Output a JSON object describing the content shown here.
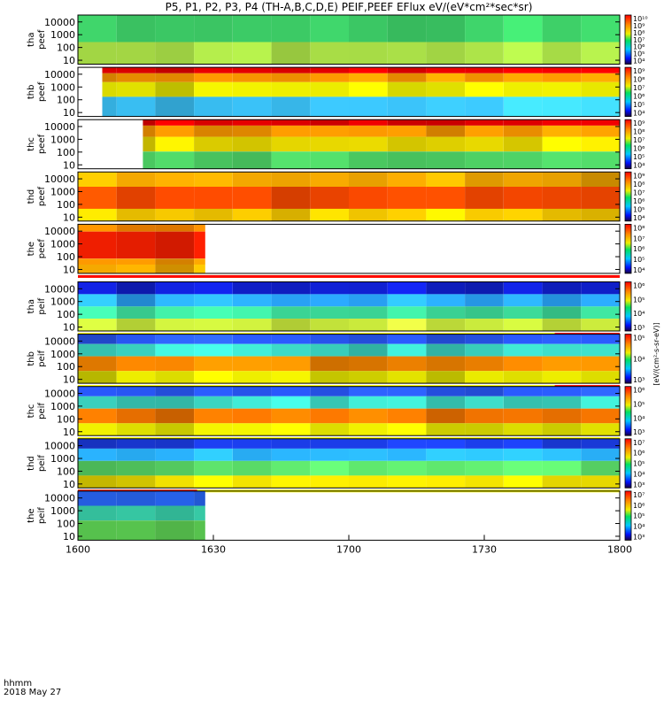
{
  "chart_data": {
    "type": "heatmap",
    "title": "P5, P1, P2, P3, P4 (TH-A,B,C,D,E) PEIF,PEEF EFlux eV/(eV*cm²*sec*sr)",
    "colorbar_label": "[eV/(cm²-s-sr-eV)]",
    "time_axis": {
      "ticks": [
        "1600",
        "1630",
        "1700",
        "1730",
        "1800"
      ],
      "label_line1": "hhmm",
      "label_line2": "2018 May 27"
    },
    "energy_ticks": [
      "10",
      "100",
      "1000",
      "10000"
    ],
    "panels": [
      {
        "probe": "tha",
        "product": "peef",
        "label_top": "tha",
        "label_bottom": "peef",
        "cbar_ticks": [
          "10⁴",
          "10⁵",
          "10⁶",
          "10⁷",
          "10⁸",
          "10⁹",
          "10¹⁰"
        ],
        "coverage": [
          0,
          1
        ],
        "bands": [
          {
            "from": 0.0,
            "to": 0.55,
            "color": "#3fd46a"
          },
          {
            "from": 0.55,
            "to": 1.0,
            "color": "#b0e84a"
          }
        ],
        "status_bar": ""
      },
      {
        "probe": "thb",
        "product": "peef",
        "label_top": "thb",
        "label_bottom": "peef",
        "cbar_ticks": [
          "10⁴",
          "10⁵",
          "10⁶",
          "10⁷",
          "10⁸",
          "10⁹"
        ],
        "coverage": [
          0.045,
          1
        ],
        "bands": [
          {
            "from": 0.0,
            "to": 0.12,
            "color": "#e80000"
          },
          {
            "from": 0.12,
            "to": 0.3,
            "color": "#ff9a00"
          },
          {
            "from": 0.3,
            "to": 0.6,
            "color": "#e8e800"
          },
          {
            "from": 0.6,
            "to": 1.0,
            "color": "#3cc8ff"
          }
        ],
        "status_bar": ""
      },
      {
        "probe": "thc",
        "product": "peef",
        "label_top": "thc",
        "label_bottom": "peef",
        "cbar_ticks": [
          "10⁴",
          "10⁵",
          "10⁶",
          "10⁷",
          "10⁸",
          "10⁹"
        ],
        "coverage": [
          0.12,
          1
        ],
        "bands": [
          {
            "from": 0.0,
            "to": 0.12,
            "color": "#e80000"
          },
          {
            "from": 0.12,
            "to": 0.35,
            "color": "#ff9a00"
          },
          {
            "from": 0.35,
            "to": 0.65,
            "color": "#f0e000"
          },
          {
            "from": 0.65,
            "to": 1.0,
            "color": "#52dc6a"
          }
        ],
        "status_bar": ""
      },
      {
        "probe": "thd",
        "product": "peef",
        "label_top": "thd",
        "label_bottom": "peef",
        "cbar_ticks": [
          "10⁴",
          "10⁵",
          "10⁶",
          "10⁷",
          "10⁸",
          "10⁹"
        ],
        "coverage": [
          0,
          1
        ],
        "bands": [
          {
            "from": 0.0,
            "to": 0.3,
            "color": "#ffb000"
          },
          {
            "from": 0.3,
            "to": 0.75,
            "color": "#ff4a00"
          },
          {
            "from": 0.75,
            "to": 1.0,
            "color": "#ffd000"
          }
        ],
        "status_bar": ""
      },
      {
        "probe": "the",
        "product": "peef",
        "label_top": "the",
        "label_bottom": "peef",
        "cbar_ticks": [
          "10⁴",
          "10⁵",
          "10⁶",
          "10⁷",
          "10⁸"
        ],
        "coverage": [
          0,
          0.235
        ],
        "bands": [
          {
            "from": 0.0,
            "to": 0.15,
            "color": "#ff8a00"
          },
          {
            "from": 0.15,
            "to": 0.7,
            "color": "#ff2000"
          },
          {
            "from": 0.7,
            "to": 0.82,
            "color": "#ff9a00"
          },
          {
            "from": 0.82,
            "to": 1.0,
            "color": "#ffb000"
          }
        ],
        "status_bar": "red"
      },
      {
        "probe": "tha",
        "product": "peif",
        "label_top": "tha",
        "label_bottom": "peif",
        "cbar_ticks": [
          "10³",
          "10⁴",
          "10⁵",
          "10⁶"
        ],
        "coverage": [
          0,
          1
        ],
        "bands": [
          {
            "from": 0.0,
            "to": 0.25,
            "color": "#1020d0"
          },
          {
            "from": 0.25,
            "to": 0.5,
            "color": "#2aa8ff"
          },
          {
            "from": 0.5,
            "to": 0.75,
            "color": "#3cdc9a"
          },
          {
            "from": 0.75,
            "to": 1.0,
            "color": "#c8e83c"
          }
        ],
        "status_bar": "red-end"
      },
      {
        "probe": "thb",
        "product": "peif",
        "label_top": "thb",
        "label_bottom": "peif",
        "cbar_ticks": [
          "10³",
          "10⁴",
          "10⁵"
        ],
        "coverage": [
          0,
          1
        ],
        "bands": [
          {
            "from": 0.0,
            "to": 0.2,
            "color": "#2a5aff"
          },
          {
            "from": 0.2,
            "to": 0.45,
            "color": "#3cdcc8"
          },
          {
            "from": 0.45,
            "to": 0.75,
            "color": "#ff8a00"
          },
          {
            "from": 0.75,
            "to": 1.0,
            "color": "#e8e800"
          }
        ],
        "status_bar": "red-end"
      },
      {
        "probe": "thc",
        "product": "peif",
        "label_top": "thc",
        "label_bottom": "peif",
        "cbar_ticks": [
          "10³",
          "10⁴",
          "10⁵",
          "10⁶"
        ],
        "coverage": [
          0,
          1
        ],
        "bands": [
          {
            "from": 0.0,
            "to": 0.2,
            "color": "#2a5aff"
          },
          {
            "from": 0.2,
            "to": 0.45,
            "color": "#3cdcc8"
          },
          {
            "from": 0.45,
            "to": 0.75,
            "color": "#ff7a00"
          },
          {
            "from": 0.75,
            "to": 1.0,
            "color": "#e8e800"
          }
        ],
        "status_bar": "yellow"
      },
      {
        "probe": "thd",
        "product": "peif",
        "label_top": "thd",
        "label_bottom": "peif",
        "cbar_ticks": [
          "10³",
          "10⁴",
          "10⁵",
          "10⁶",
          "10⁷"
        ],
        "coverage": [
          0,
          1
        ],
        "bands": [
          {
            "from": 0.0,
            "to": 0.2,
            "color": "#1a3adc"
          },
          {
            "from": 0.2,
            "to": 0.45,
            "color": "#2ab4ff"
          },
          {
            "from": 0.45,
            "to": 0.75,
            "color": "#5ce06a"
          },
          {
            "from": 0.75,
            "to": 1.0,
            "color": "#f0e000"
          }
        ],
        "status_bar": "red-start"
      },
      {
        "probe": "the",
        "product": "peif",
        "label_top": "the",
        "label_bottom": "peif",
        "cbar_ticks": [
          "10³",
          "10⁴",
          "10⁵",
          "10⁶",
          "10⁷"
        ],
        "coverage": [
          0,
          0.235
        ],
        "bands": [
          {
            "from": 0.0,
            "to": 0.3,
            "color": "#2a6aff"
          },
          {
            "from": 0.3,
            "to": 0.6,
            "color": "#3cdcb4"
          },
          {
            "from": 0.6,
            "to": 1.0,
            "color": "#64e05a"
          }
        ],
        "status_bar": ""
      }
    ]
  }
}
